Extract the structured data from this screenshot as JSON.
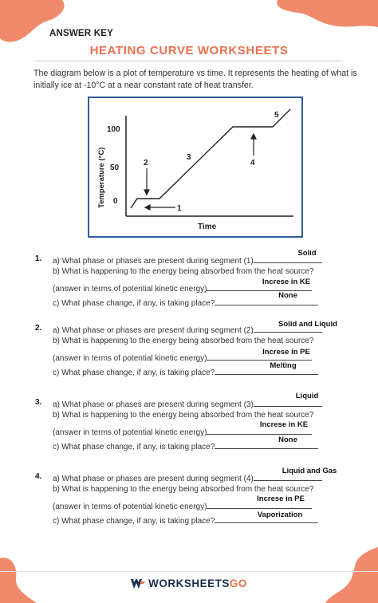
{
  "header": {
    "answer_key": "ANSWER KEY",
    "title": "HEATING CURVE WORKSHEETS"
  },
  "intro": "The diagram below is a plot of temperature vs time. It represents the heating of what is initially ice at -10°C at a near constant rate of heat transfer.",
  "diagram": {
    "ylabel": "Temperature (°C)",
    "xlabel": "Time",
    "y_ticks": [
      "100",
      "50",
      "0"
    ],
    "segment_labels": [
      "1",
      "2",
      "3",
      "4",
      "5"
    ]
  },
  "questions": [
    {
      "number": "1.",
      "a_text": "a) What phase or phases are present during segment (1)",
      "a_answer": "Solid",
      "b_text": "b) What is happening to the energy being absorbed from the heat source?",
      "b2_text": "(answer in terms of potential kinetic energy)",
      "b_answer": "Increse in KE",
      "c_text": "c) What phase change, if any, is taking place?",
      "c_answer": "None"
    },
    {
      "number": "2.",
      "a_text": "a) What phase or phases are present during segment (2)",
      "a_answer": "Solid and Liquid",
      "b_text": "b) What is happening to the energy being absorbed from the heat source?",
      "b2_text": "(answer in terms of potential kinetic energy)",
      "b_answer": "Increse in PE",
      "c_text": "c) What phase change, if any, is taking place?",
      "c_answer": "Melting"
    },
    {
      "number": "3.",
      "a_text": "a) What phase or phases are present during segment (3)",
      "a_answer": "Liquid",
      "b_text": "b) What is happening to the energy being absorbed from the heat source?",
      "b2_text": "(answer in terms of potential kinetic energy)",
      "b_answer": "Increse in KE",
      "c_text": "c) What phase change, if any, is taking place?",
      "c_answer": "None"
    },
    {
      "number": "4.",
      "a_text": "a) What phase or phases are present during segment (4)",
      "a_answer": "Liquid and Gas",
      "b_text": "b) What is happening to the energy being absorbed from the heat source?",
      "b2_text": "(answer in terms of potential kinetic energy)",
      "b_answer": "Increse in PE",
      "c_text": "c) What phase change, if any, is taking place?",
      "c_answer": "Vaporization"
    }
  ],
  "footer": {
    "brand_main": "WORKSHEETS",
    "brand_accent": "GO",
    "logo_icon": "worksheetsgo-logo-icon"
  },
  "colors": {
    "accent": "#e8714f",
    "blob": "#f08a6b",
    "frame": "#2f5f98",
    "brand": "#1d2e52"
  }
}
